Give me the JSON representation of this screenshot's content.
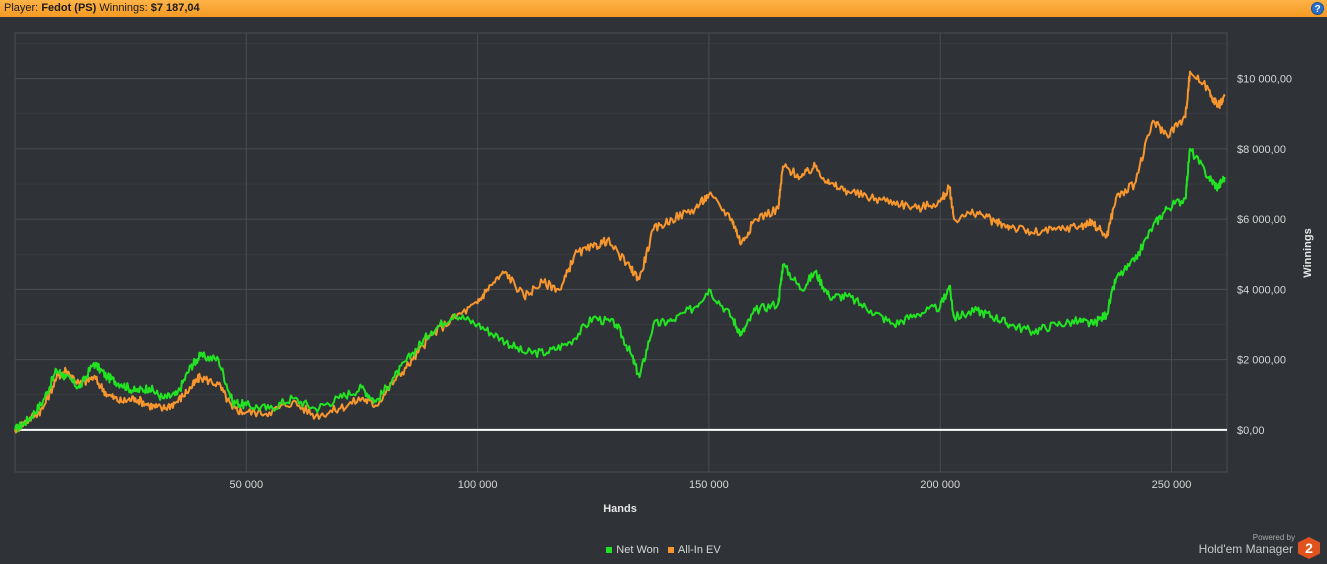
{
  "header": {
    "player_label": "Player:",
    "player_name": "Fedot (PS)",
    "winnings_label": "Winnings:",
    "winnings_value": "$7 187,04",
    "help_glyph": "?"
  },
  "footer": {
    "powered_by": "Powered by",
    "brand": "Hold'em Manager",
    "logo_glyph": "2"
  },
  "colors": {
    "background": "#2f3236",
    "grid": "#4a4d52",
    "zero_line": "#ffffff",
    "net_won": "#22e322",
    "all_in_ev": "#f7962e"
  },
  "chart_data": {
    "type": "line",
    "title": "",
    "xlabel": "Hands",
    "ylabel": "Winnings",
    "xlim": [
      0,
      262000
    ],
    "ylim": [
      -1200,
      11300
    ],
    "x_ticks": [
      50000,
      100000,
      150000,
      200000,
      250000
    ],
    "x_tick_labels": [
      "50 000",
      "100 000",
      "150 000",
      "200 000",
      "250 000"
    ],
    "y_ticks": [
      0,
      2000,
      4000,
      6000,
      8000,
      10000
    ],
    "y_tick_labels": [
      "$0,00",
      "$2 000,00",
      "$4 000,00",
      "$6 000,00",
      "$8 000,00",
      "$10 000,00"
    ],
    "grid": true,
    "legend_position": "bottom-center",
    "series": [
      {
        "name": "Net Won",
        "x": [
          0,
          3000,
          6000,
          9000,
          11000,
          14000,
          17000,
          20000,
          23000,
          26000,
          29000,
          32000,
          35000,
          38000,
          40000,
          44000,
          47000,
          50000,
          55000,
          60000,
          65000,
          70000,
          75000,
          78000,
          82000,
          86000,
          90000,
          95000,
          100000,
          105000,
          110000,
          115000,
          120000,
          125000,
          130000,
          133000,
          135000,
          138000,
          142000,
          147000,
          150000,
          155000,
          157000,
          160000,
          165000,
          166000,
          170000,
          173000,
          176000,
          180000,
          185000,
          190000,
          195000,
          200000,
          202000,
          203000,
          208000,
          212000,
          215000,
          220000,
          225000,
          230000,
          233000,
          236000,
          238000,
          242000,
          246000,
          249000,
          253000,
          254000,
          258000,
          260000,
          261500
        ],
        "values": [
          0,
          300,
          800,
          1700,
          1500,
          1200,
          1900,
          1500,
          1300,
          1100,
          1200,
          900,
          1000,
          1800,
          2100,
          2000,
          800,
          700,
          600,
          900,
          600,
          900,
          1200,
          800,
          1500,
          2200,
          2800,
          3300,
          3000,
          2600,
          2200,
          2200,
          2500,
          3200,
          3000,
          2200,
          1500,
          3000,
          3100,
          3500,
          4000,
          3200,
          2700,
          3400,
          3600,
          4700,
          4000,
          4500,
          3800,
          3800,
          3400,
          3000,
          3300,
          3500,
          4100,
          3200,
          3400,
          3200,
          3000,
          2800,
          3000,
          3100,
          3000,
          3300,
          4300,
          4800,
          5800,
          6300,
          6600,
          8000,
          7200,
          6900,
          7200
        ]
      },
      {
        "name": "All-In EV",
        "x": [
          0,
          3000,
          6000,
          9000,
          11000,
          14000,
          17000,
          20000,
          23000,
          26000,
          29000,
          32000,
          35000,
          38000,
          40000,
          44000,
          47000,
          50000,
          55000,
          60000,
          65000,
          70000,
          75000,
          78000,
          82000,
          86000,
          90000,
          95000,
          100000,
          102000,
          106000,
          110000,
          114000,
          118000,
          121000,
          125000,
          128000,
          133000,
          135000,
          138000,
          142000,
          147000,
          150000,
          155000,
          157000,
          160000,
          165000,
          166000,
          170000,
          173000,
          176000,
          180000,
          185000,
          190000,
          195000,
          200000,
          202000,
          203000,
          208000,
          212000,
          215000,
          220000,
          225000,
          230000,
          233000,
          236000,
          238000,
          242000,
          246000,
          249000,
          253000,
          254000,
          258000,
          260000,
          261500
        ],
        "values": [
          0,
          300,
          600,
          1500,
          1700,
          1300,
          1500,
          1000,
          800,
          900,
          700,
          600,
          800,
          1200,
          1500,
          1300,
          600,
          500,
          500,
          800,
          400,
          600,
          900,
          700,
          1400,
          2000,
          2700,
          3200,
          3600,
          4000,
          4500,
          3800,
          4200,
          4000,
          5000,
          5200,
          5400,
          4600,
          4300,
          5700,
          6000,
          6300,
          6700,
          6000,
          5300,
          6000,
          6300,
          7500,
          7200,
          7500,
          7000,
          6800,
          6600,
          6500,
          6300,
          6500,
          6900,
          6000,
          6200,
          5900,
          5800,
          5600,
          5700,
          5800,
          5900,
          5500,
          6600,
          7000,
          8800,
          8400,
          8900,
          10200,
          9700,
          9200,
          9500
        ]
      }
    ]
  }
}
